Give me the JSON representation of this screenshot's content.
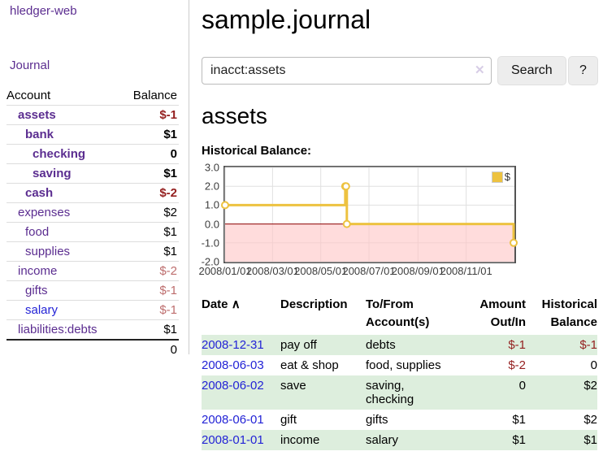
{
  "brand": "hledger-web",
  "sidebar": {
    "journal_link": "Journal",
    "table": {
      "col_account": "Account",
      "col_balance": "Balance",
      "accounts": [
        {
          "name": "assets",
          "balance": "$-1"
        },
        {
          "name": "bank",
          "balance": "$1"
        },
        {
          "name": "checking",
          "balance": "0"
        },
        {
          "name": "saving",
          "balance": "$1"
        },
        {
          "name": "cash",
          "balance": "$-2"
        },
        {
          "name": "expenses",
          "balance": "$2"
        },
        {
          "name": "food",
          "balance": "$1"
        },
        {
          "name": "supplies",
          "balance": "$1"
        },
        {
          "name": "income",
          "balance": "$-2"
        },
        {
          "name": "gifts",
          "balance": "$-1"
        },
        {
          "name": "salary",
          "balance": "$-1"
        },
        {
          "name": "liabilities:debts",
          "balance": "$1"
        }
      ],
      "total": "0"
    }
  },
  "main": {
    "title": "sample.journal",
    "search": {
      "value": "inacct:assets",
      "clear_icon": "✕",
      "button_label": "Search",
      "help_label": "?"
    },
    "account_heading": "assets",
    "chart_heading": "Historical Balance:"
  },
  "chart_data": {
    "type": "line",
    "title": "Historical Balance",
    "step": true,
    "dates": [
      "2008-01-01",
      "2008-06-01",
      "2008-06-02",
      "2008-06-03",
      "2008-12-31"
    ],
    "values": [
      1,
      2,
      2,
      0,
      -1
    ],
    "series": [
      {
        "name": "$",
        "color": "#edc240",
        "points": [
          [
            0,
            1
          ],
          [
            152,
            2
          ],
          [
            153,
            2
          ],
          [
            154,
            0
          ],
          [
            365,
            -1
          ]
        ]
      }
    ],
    "x_unit": "days since 2008-01-01",
    "xlim": [
      0,
      366
    ],
    "ylim": [
      -2,
      3
    ],
    "x_ticks": [
      {
        "pos": 0,
        "label": "2008/01/01"
      },
      {
        "pos": 60,
        "label": "2008/03/01"
      },
      {
        "pos": 121,
        "label": "2008/05/01"
      },
      {
        "pos": 182,
        "label": "2008/07/01"
      },
      {
        "pos": 244,
        "label": "2008/09/01"
      },
      {
        "pos": 305,
        "label": "2008/11/01"
      }
    ],
    "y_ticks": [
      3.0,
      2.0,
      1.0,
      0.0,
      -1.0,
      -2.0
    ],
    "grid_color": "#e0e0e0",
    "zero_line_color": "#8b0000",
    "negative_fill": "#ffc4c4",
    "legend": {
      "label": "$",
      "position": "top-right"
    }
  },
  "register": {
    "headers": {
      "date": "Date",
      "sort_icon": "∧",
      "description": "Description",
      "accounts": "To/From Account(s)",
      "amount": "Amount Out/In",
      "balance": "Historical Balance"
    },
    "rows": [
      {
        "date": "2008-12-31",
        "description": "pay off",
        "accounts": "debts",
        "amount": "$-1",
        "balance": "$-1"
      },
      {
        "date": "2008-06-03",
        "description": "eat & shop",
        "accounts": "food, supplies",
        "amount": "$-2",
        "balance": "0"
      },
      {
        "date": "2008-06-02",
        "description": "save",
        "accounts": "saving, checking",
        "amount": "0",
        "balance": "$2"
      },
      {
        "date": "2008-06-01",
        "description": "gift",
        "accounts": "gifts",
        "amount": "$1",
        "balance": "$2"
      },
      {
        "date": "2008-01-01",
        "description": "income",
        "accounts": "salary",
        "amount": "$1",
        "balance": "$1"
      }
    ]
  }
}
